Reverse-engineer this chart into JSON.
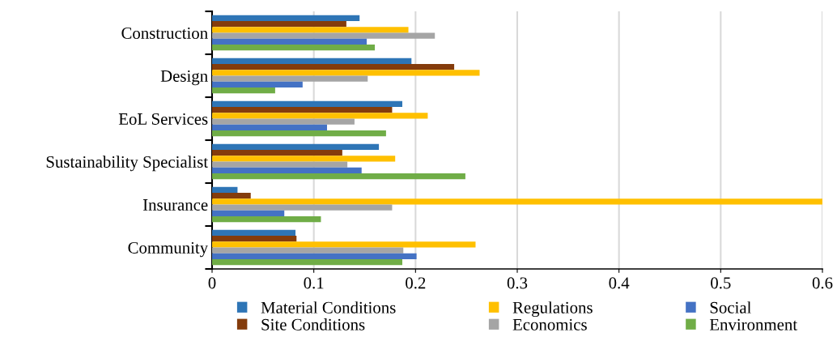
{
  "chart_data": {
    "type": "bar",
    "orientation": "horizontal",
    "categories": [
      "Construction",
      "Design",
      "EoL Services",
      "Sustainability Specialist",
      "Insurance",
      "Community"
    ],
    "series": [
      {
        "name": "Material Conditions",
        "color": "#2e75b6",
        "values": [
          0.145,
          0.196,
          0.187,
          0.164,
          0.025,
          0.082
        ]
      },
      {
        "name": "Site Conditions",
        "color": "#843c0c",
        "values": [
          0.132,
          0.238,
          0.177,
          0.128,
          0.038,
          0.083
        ]
      },
      {
        "name": "Regulations",
        "color": "#ffc000",
        "values": [
          0.193,
          0.263,
          0.212,
          0.18,
          0.6,
          0.259
        ]
      },
      {
        "name": "Economics",
        "color": "#a5a5a5",
        "values": [
          0.219,
          0.153,
          0.14,
          0.133,
          0.177,
          0.188
        ]
      },
      {
        "name": "Social",
        "color": "#4472c4",
        "values": [
          0.152,
          0.089,
          0.113,
          0.147,
          0.071,
          0.201
        ]
      },
      {
        "name": "Environment",
        "color": "#70ad47",
        "values": [
          0.16,
          0.062,
          0.171,
          0.249,
          0.107,
          0.187
        ]
      }
    ],
    "xlim": [
      0,
      0.6
    ],
    "xticks": [
      0,
      0.1,
      0.2,
      0.3,
      0.4,
      0.5,
      0.6
    ],
    "grid": "x",
    "legend": "bottom"
  }
}
